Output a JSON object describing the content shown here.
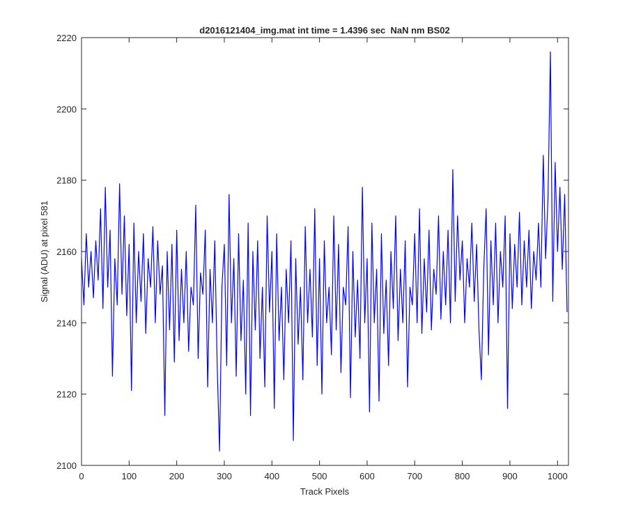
{
  "chart_data": {
    "type": "line",
    "title": "d2016121404_img.mat int time = 1.4396 sec  NaN nm BS02",
    "x_label": "Track Pixels",
    "y_label": "Signal (ADU) at pixel 581",
    "color": "#0000ff",
    "xlim": [
      0,
      1023
    ],
    "ylim": [
      2100,
      2220
    ],
    "xticks": [
      0,
      100,
      200,
      300,
      400,
      500,
      600,
      700,
      800,
      900,
      1000
    ],
    "yticks": [
      2100,
      2120,
      2140,
      2160,
      2180,
      2200,
      2220
    ],
    "x": [
      0,
      5,
      10,
      15,
      20,
      25,
      30,
      35,
      40,
      45,
      50,
      55,
      60,
      65,
      70,
      75,
      80,
      85,
      90,
      95,
      100,
      105,
      110,
      115,
      120,
      125,
      130,
      135,
      140,
      145,
      150,
      155,
      160,
      165,
      170,
      175,
      180,
      185,
      190,
      195,
      200,
      205,
      210,
      215,
      220,
      225,
      230,
      235,
      240,
      245,
      250,
      255,
      260,
      265,
      270,
      275,
      280,
      285,
      290,
      295,
      300,
      305,
      310,
      315,
      320,
      325,
      330,
      335,
      340,
      345,
      350,
      355,
      360,
      365,
      370,
      375,
      380,
      385,
      390,
      395,
      400,
      405,
      410,
      415,
      420,
      425,
      430,
      435,
      440,
      445,
      450,
      455,
      460,
      465,
      470,
      475,
      480,
      485,
      490,
      495,
      500,
      505,
      510,
      515,
      520,
      525,
      530,
      535,
      540,
      545,
      550,
      555,
      560,
      565,
      570,
      575,
      580,
      585,
      590,
      595,
      600,
      605,
      610,
      615,
      620,
      625,
      630,
      635,
      640,
      645,
      650,
      655,
      660,
      665,
      670,
      675,
      680,
      685,
      690,
      695,
      700,
      705,
      710,
      715,
      720,
      725,
      730,
      735,
      740,
      745,
      750,
      755,
      760,
      765,
      770,
      775,
      780,
      785,
      790,
      795,
      800,
      805,
      810,
      815,
      820,
      825,
      830,
      835,
      840,
      845,
      850,
      855,
      860,
      865,
      870,
      875,
      880,
      885,
      890,
      895,
      900,
      905,
      910,
      915,
      920,
      925,
      930,
      935,
      940,
      945,
      950,
      955,
      960,
      965,
      970,
      975,
      980,
      985,
      990,
      995,
      1000,
      1005,
      1010,
      1015,
      1020
    ],
    "values": [
      2158,
      2145,
      2165,
      2150,
      2160,
      2147,
      2163,
      2152,
      2172,
      2144,
      2178,
      2150,
      2166,
      2125,
      2158,
      2145,
      2179,
      2148,
      2170,
      2142,
      2162,
      2121,
      2168,
      2140,
      2160,
      2146,
      2165,
      2137,
      2158,
      2150,
      2167,
      2140,
      2163,
      2148,
      2156,
      2114,
      2160,
      2138,
      2162,
      2129,
      2166,
      2135,
      2155,
      2140,
      2160,
      2132,
      2150,
      2145,
      2173,
      2130,
      2154,
      2148,
      2166,
      2122,
      2155,
      2140,
      2163,
      2128,
      2104,
      2150,
      2162,
      2128,
      2176,
      2140,
      2158,
      2125,
      2165,
      2135,
      2152,
      2120,
      2168,
      2114,
      2160,
      2138,
      2163,
      2130,
      2150,
      2122,
      2170,
      2143,
      2160,
      2116,
      2165,
      2135,
      2150,
      2124,
      2155,
      2140,
      2163,
      2107,
      2158,
      2134,
      2150,
      2124,
      2167,
      2140,
      2155,
      2136,
      2172,
      2128,
      2158,
      2120,
      2163,
      2140,
      2150,
      2131,
      2170,
      2138,
      2162,
      2126,
      2150,
      2145,
      2167,
      2119,
      2160,
      2136,
      2152,
      2130,
      2178,
      2140,
      2158,
      2115,
      2168,
      2140,
      2155,
      2118,
      2165,
      2137,
      2152,
      2128,
      2160,
      2144,
      2170,
      2135,
      2155,
      2140,
      2163,
      2122,
      2150,
      2145,
      2165,
      2140,
      2172,
      2137,
      2158,
      2143,
      2166,
      2138,
      2155,
      2148,
      2170,
      2141,
      2160,
      2145,
      2166,
      2140,
      2183,
      2146,
      2170,
      2152,
      2163,
      2140,
      2158,
      2150,
      2168,
      2146,
      2162,
      2138,
      2124,
      2155,
      2172,
      2131,
      2163,
      2145,
      2168,
      2140,
      2160,
      2150,
      2170,
      2116,
      2165,
      2144,
      2162,
      2150,
      2171,
      2145,
      2163,
      2150,
      2166,
      2144,
      2160,
      2152,
      2168,
      2150,
      2187,
      2158,
      2175,
      2216,
      2146,
      2185,
      2160,
      2178,
      2155,
      2176,
      2143
    ]
  }
}
